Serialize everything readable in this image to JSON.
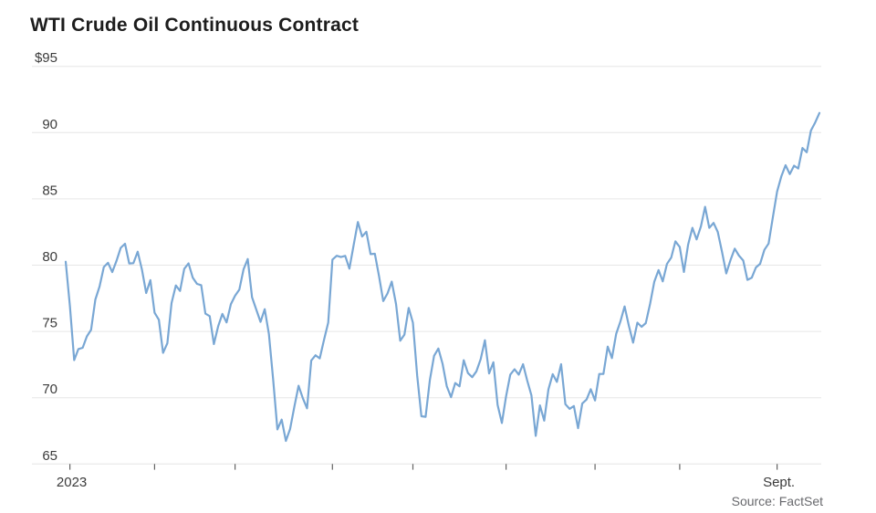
{
  "title": "WTI Crude Oil Continuous Contract",
  "source": "Source: FactSet",
  "colors": {
    "line": "#79a7d4",
    "grid": "#e6e6e6",
    "tick": "#636363",
    "title": "#1d1d1d",
    "axis_label": "#3b3b3b",
    "source": "#68696d",
    "background": "#ffffff"
  },
  "chart_data": {
    "type": "line",
    "title": "WTI Crude Oil Continuous Contract",
    "xlabel": "",
    "ylabel": "",
    "ylim": [
      65,
      95
    ],
    "grid": "horizontal",
    "legend": "none",
    "y_ticks": [
      {
        "value": 95,
        "label": "$95"
      },
      {
        "value": 90,
        "label": "90"
      },
      {
        "value": 85,
        "label": "85"
      },
      {
        "value": 80,
        "label": "80"
      },
      {
        "value": 75,
        "label": "75"
      },
      {
        "value": 70,
        "label": "70"
      },
      {
        "value": 65,
        "label": "65"
      }
    ],
    "x_ticks": [
      {
        "index": 1,
        "label": "2023"
      },
      {
        "index": 21,
        "label": ""
      },
      {
        "index": 40,
        "label": ""
      },
      {
        "index": 63,
        "label": ""
      },
      {
        "index": 82,
        "label": ""
      },
      {
        "index": 104,
        "label": ""
      },
      {
        "index": 125,
        "label": ""
      },
      {
        "index": 145,
        "label": ""
      },
      {
        "index": 168,
        "label": "Sept."
      }
    ],
    "series": [
      {
        "name": "WTI Crude Oil Continuous Contract",
        "dates": [
          "2022-12-30",
          "2023-01-03",
          "2023-01-04",
          "2023-01-05",
          "2023-01-06",
          "2023-01-09",
          "2023-01-10",
          "2023-01-11",
          "2023-01-12",
          "2023-01-13",
          "2023-01-17",
          "2023-01-18",
          "2023-01-19",
          "2023-01-20",
          "2023-01-23",
          "2023-01-24",
          "2023-01-25",
          "2023-01-26",
          "2023-01-27",
          "2023-01-30",
          "2023-01-31",
          "2023-02-01",
          "2023-02-02",
          "2023-02-03",
          "2023-02-06",
          "2023-02-07",
          "2023-02-08",
          "2023-02-09",
          "2023-02-10",
          "2023-02-13",
          "2023-02-14",
          "2023-02-15",
          "2023-02-16",
          "2023-02-17",
          "2023-02-21",
          "2023-02-22",
          "2023-02-23",
          "2023-02-24",
          "2023-02-27",
          "2023-02-28",
          "2023-03-01",
          "2023-03-02",
          "2023-03-03",
          "2023-03-06",
          "2023-03-07",
          "2023-03-08",
          "2023-03-09",
          "2023-03-10",
          "2023-03-13",
          "2023-03-14",
          "2023-03-15",
          "2023-03-16",
          "2023-03-17",
          "2023-03-20",
          "2023-03-21",
          "2023-03-22",
          "2023-03-23",
          "2023-03-24",
          "2023-03-27",
          "2023-03-28",
          "2023-03-29",
          "2023-03-30",
          "2023-03-31",
          "2023-04-03",
          "2023-04-04",
          "2023-04-05",
          "2023-04-06",
          "2023-04-10",
          "2023-04-11",
          "2023-04-12",
          "2023-04-13",
          "2023-04-14",
          "2023-04-17",
          "2023-04-18",
          "2023-04-19",
          "2023-04-20",
          "2023-04-21",
          "2023-04-24",
          "2023-04-25",
          "2023-04-26",
          "2023-04-27",
          "2023-04-28",
          "2023-05-01",
          "2023-05-02",
          "2023-05-03",
          "2023-05-04",
          "2023-05-05",
          "2023-05-08",
          "2023-05-09",
          "2023-05-10",
          "2023-05-11",
          "2023-05-12",
          "2023-05-15",
          "2023-05-16",
          "2023-05-17",
          "2023-05-18",
          "2023-05-19",
          "2023-05-22",
          "2023-05-23",
          "2023-05-24",
          "2023-05-25",
          "2023-05-26",
          "2023-05-30",
          "2023-05-31",
          "2023-06-01",
          "2023-06-02",
          "2023-06-05",
          "2023-06-06",
          "2023-06-07",
          "2023-06-08",
          "2023-06-09",
          "2023-06-12",
          "2023-06-13",
          "2023-06-14",
          "2023-06-15",
          "2023-06-16",
          "2023-06-20",
          "2023-06-21",
          "2023-06-22",
          "2023-06-23",
          "2023-06-26",
          "2023-06-27",
          "2023-06-28",
          "2023-06-29",
          "2023-06-30",
          "2023-07-03",
          "2023-07-05",
          "2023-07-06",
          "2023-07-07",
          "2023-07-10",
          "2023-07-11",
          "2023-07-12",
          "2023-07-13",
          "2023-07-14",
          "2023-07-17",
          "2023-07-18",
          "2023-07-19",
          "2023-07-20",
          "2023-07-21",
          "2023-07-24",
          "2023-07-25",
          "2023-07-26",
          "2023-07-27",
          "2023-07-28",
          "2023-07-31",
          "2023-08-01",
          "2023-08-02",
          "2023-08-03",
          "2023-08-04",
          "2023-08-07",
          "2023-08-08",
          "2023-08-09",
          "2023-08-10",
          "2023-08-11",
          "2023-08-14",
          "2023-08-15",
          "2023-08-16",
          "2023-08-17",
          "2023-08-18",
          "2023-08-21",
          "2023-08-22",
          "2023-08-23",
          "2023-08-24",
          "2023-08-25",
          "2023-08-28",
          "2023-08-29",
          "2023-08-30",
          "2023-08-31",
          "2023-09-01",
          "2023-09-05",
          "2023-09-06",
          "2023-09-07",
          "2023-09-08",
          "2023-09-11",
          "2023-09-12",
          "2023-09-13",
          "2023-09-14",
          "2023-09-15",
          "2023-09-18"
        ],
        "values": [
          80.26,
          76.93,
          72.84,
          73.67,
          73.77,
          74.63,
          75.12,
          77.41,
          78.39,
          79.86,
          80.18,
          79.48,
          80.33,
          81.31,
          81.62,
          80.13,
          80.15,
          81.01,
          79.68,
          77.9,
          78.87,
          76.41,
          75.88,
          73.39,
          74.11,
          77.14,
          78.47,
          78.06,
          79.72,
          80.14,
          79.06,
          78.59,
          78.49,
          76.34,
          76.16,
          74.05,
          75.39,
          76.32,
          75.68,
          77.05,
          77.69,
          78.16,
          79.68,
          80.46,
          77.58,
          76.66,
          75.72,
          76.68,
          74.8,
          71.33,
          67.61,
          68.35,
          66.74,
          67.64,
          69.33,
          70.9,
          69.96,
          69.2,
          72.81,
          73.2,
          72.97,
          74.37,
          75.67,
          80.42,
          80.71,
          80.61,
          80.7,
          79.74,
          81.53,
          83.26,
          82.16,
          82.52,
          80.83,
          80.86,
          79.16,
          77.29,
          77.87,
          78.76,
          77.07,
          74.3,
          74.76,
          76.78,
          75.66,
          71.66,
          68.6,
          68.56,
          71.34,
          73.16,
          73.71,
          72.56,
          70.87,
          70.04,
          71.11,
          70.86,
          72.83,
          71.86,
          71.55,
          71.99,
          72.91,
          74.34,
          71.83,
          72.67,
          69.46,
          68.09,
          70.1,
          71.74,
          72.15,
          71.74,
          72.53,
          71.29,
          70.17,
          67.12,
          69.42,
          68.27,
          70.62,
          71.78,
          71.19,
          72.53,
          69.51,
          69.16,
          69.37,
          67.7,
          69.56,
          69.86,
          70.64,
          69.79,
          71.79,
          71.8,
          73.86,
          72.99,
          74.83,
          75.75,
          76.89,
          75.42,
          74.15,
          75.66,
          75.35,
          75.63,
          77.07,
          78.74,
          79.63,
          78.78,
          80.09,
          80.58,
          81.8,
          81.37,
          79.49,
          81.55,
          82.82,
          81.94,
          82.92,
          84.4,
          82.82,
          83.19,
          82.51,
          80.99,
          79.38,
          80.39,
          81.25,
          80.72,
          80.35,
          78.89,
          79.05,
          79.83,
          80.1,
          81.16,
          81.63,
          83.63,
          85.55,
          86.69,
          87.54,
          86.87,
          87.51,
          87.29,
          88.84,
          88.52,
          90.16,
          90.77,
          91.48
        ]
      }
    ]
  }
}
